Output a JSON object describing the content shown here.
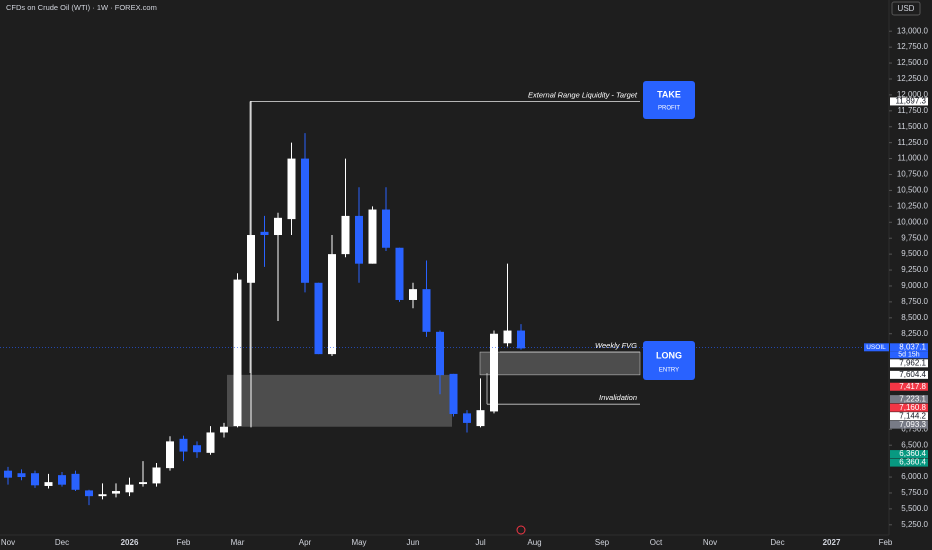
{
  "chart_data": {
    "type": "candlestick",
    "title": "CFDs on Crude Oil (WTI) · 1W · FOREX.com",
    "currency": "USD",
    "categories": [
      "Nov",
      null,
      null,
      null,
      "Dec",
      null,
      null,
      null,
      null,
      "2026",
      null,
      null,
      null,
      "Feb",
      null,
      null,
      null,
      "Mar",
      null,
      null,
      null,
      null,
      "Apr",
      null,
      null,
      null,
      "May",
      null,
      null,
      null,
      "Jun",
      null,
      null,
      null,
      null,
      "Jul",
      null,
      null,
      null,
      "Aug",
      null,
      null,
      null,
      null,
      "Sep",
      null,
      null,
      null,
      "Oct",
      null,
      null,
      null,
      "Nov",
      null,
      null,
      null,
      null,
      "Dec",
      null,
      null,
      null,
      "2027",
      null,
      null,
      null,
      "Feb"
    ],
    "open": [
      6100,
      6060,
      6060,
      5860,
      6030,
      6050,
      5790,
      5700,
      5740,
      5760,
      5890,
      5900,
      6140,
      6600,
      6500,
      6380,
      6700,
      6800,
      9050,
      9850,
      9800,
      10050,
      11000,
      9050,
      7930,
      9500,
      10100,
      9350,
      10200,
      9600,
      8780,
      8950,
      8280,
      7620,
      7000,
      6800,
      7030,
      8100,
      8300,
      null,
      null,
      null,
      null,
      null,
      null,
      null,
      null,
      null,
      null,
      null,
      null,
      null,
      null,
      null,
      null,
      null,
      null,
      null,
      null,
      null,
      null,
      null,
      null,
      null,
      null,
      null
    ],
    "high": [
      6160,
      6120,
      6100,
      6050,
      6080,
      6100,
      5800,
      5900,
      5900,
      5990,
      6250,
      6220,
      6640,
      6650,
      6560,
      6800,
      6850,
      9200,
      11900,
      10100,
      10150,
      11250,
      11400,
      9050,
      9800,
      11000,
      10550,
      10250,
      10550,
      9600,
      9050,
      9400,
      8300,
      7620,
      7050,
      7550,
      8300,
      9350,
      8400,
      null,
      null,
      null,
      null,
      null,
      null,
      null,
      null,
      null,
      null,
      null,
      null,
      null,
      null,
      null,
      null,
      null,
      null,
      null,
      null,
      null,
      null,
      null,
      null,
      null,
      null,
      null
    ],
    "low": [
      5880,
      5950,
      5830,
      5820,
      5850,
      5780,
      5560,
      5650,
      5680,
      5700,
      5850,
      5850,
      6100,
      6250,
      6300,
      6350,
      6620,
      6780,
      6780,
      9300,
      8450,
      9800,
      8900,
      7930,
      7900,
      9450,
      9050,
      9350,
      9550,
      8750,
      8650,
      8200,
      7300,
      6950,
      6700,
      6780,
      7000,
      8050,
      8000,
      null,
      null,
      null,
      null,
      null,
      null,
      null,
      null,
      null,
      null,
      null,
      null,
      null,
      null,
      null,
      null,
      null,
      null,
      null,
      null,
      null,
      null,
      null,
      null,
      null,
      null,
      null
    ],
    "close": [
      5990,
      6000,
      5870,
      5920,
      5880,
      5800,
      5700,
      5730,
      5780,
      5880,
      5920,
      6150,
      6560,
      6400,
      6390,
      6700,
      6790,
      9100,
      9800,
      9800,
      10070,
      11000,
      9050,
      7930,
      9500,
      10100,
      9350,
      10200,
      9600,
      8780,
      8950,
      8280,
      7600,
      6990,
      6850,
      7050,
      8250,
      8300,
      8020,
      null,
      null,
      null,
      null,
      null,
      null,
      null,
      null,
      null,
      null,
      null,
      null,
      null,
      null,
      null,
      null,
      null,
      null,
      null,
      null,
      null,
      null,
      null,
      null,
      null,
      null,
      null
    ],
    "up_color": "#ffffff",
    "down_color": "#2962ff",
    "ylim": [
      5090,
      13490
    ],
    "yticks": [
      {
        "value": 13000,
        "label": "13,000.0"
      },
      {
        "value": 12750,
        "label": "12,750.0"
      },
      {
        "value": 12500,
        "label": "12,500.0"
      },
      {
        "value": 12250,
        "label": "12,250.0"
      },
      {
        "value": 12000,
        "label": "12,000.0"
      },
      {
        "value": 11750,
        "label": "11,750.0"
      },
      {
        "value": 11500,
        "label": "11,500.0"
      },
      {
        "value": 11250,
        "label": "11,250.0"
      },
      {
        "value": 11000,
        "label": "11,000.0"
      },
      {
        "value": 10750,
        "label": "10,750.0"
      },
      {
        "value": 10500,
        "label": "10,500.0"
      },
      {
        "value": 10250,
        "label": "10,250.0"
      },
      {
        "value": 10000,
        "label": "10,000.0"
      },
      {
        "value": 9750,
        "label": "9,750.0"
      },
      {
        "value": 9500,
        "label": "9,500.0"
      },
      {
        "value": 9250,
        "label": "9,250.0"
      },
      {
        "value": 9000,
        "label": "9,000.0"
      },
      {
        "value": 8750,
        "label": "8,750.0"
      },
      {
        "value": 8500,
        "label": "8,500.0"
      },
      {
        "value": 8250,
        "label": "8,250.0"
      },
      {
        "value": 6750,
        "label": "6,750.0"
      },
      {
        "value": 6500,
        "label": "6,500.0"
      },
      {
        "value": 6000,
        "label": "6,000.0"
      },
      {
        "value": 5750,
        "label": "5,750.0"
      },
      {
        "value": 5500,
        "label": "5,500.0"
      },
      {
        "value": 5250,
        "label": "5,250.0"
      }
    ],
    "annotations": [
      {
        "text": "External Range Liquidity - Target",
        "value": 11897.3
      },
      {
        "text": "Weekly FVG",
        "value": 7962.1
      },
      {
        "text": "Invalidation",
        "value": 7144.2
      }
    ],
    "zones": [
      {
        "top": 7604.4,
        "bottom": 6790
      },
      {
        "top": 7962.1,
        "bottom": 7604.4
      }
    ],
    "buttons": [
      {
        "title": "TAKE",
        "subtitle": "PROFIT"
      },
      {
        "title": "LONG",
        "subtitle": "ENTRY"
      }
    ],
    "price_labels": [
      {
        "value": 11897.3,
        "label": "11,897.3",
        "color": "#ffffff"
      },
      {
        "value": 8037.1,
        "label": "8,037.1",
        "symbol": "USOIL",
        "countdown": "5d 15h",
        "color": "#2962ff"
      },
      {
        "value": 7962.1,
        "label": "7,962.1",
        "color": "#ffffff"
      },
      {
        "value": 7604.4,
        "label": "7,604.4",
        "color": "#ffffff"
      },
      {
        "value": 7417.8,
        "label": "7,417.8",
        "color": "#f23645"
      },
      {
        "value": 7223.1,
        "label": "7,223.1",
        "color": "#787b86"
      },
      {
        "value": 7160.8,
        "label": "7,160.8",
        "color": "#f23645"
      },
      {
        "value": 7144.2,
        "label": "7,144.2",
        "color": "#ffffff"
      },
      {
        "value": 7093.3,
        "label": "7,093.3",
        "color": "#787b86"
      },
      {
        "value": 6360.4,
        "label": "6,360.4",
        "color": "#089981"
      },
      {
        "value": 6360.4,
        "label": "6,360.4",
        "color": "#089981"
      }
    ]
  }
}
